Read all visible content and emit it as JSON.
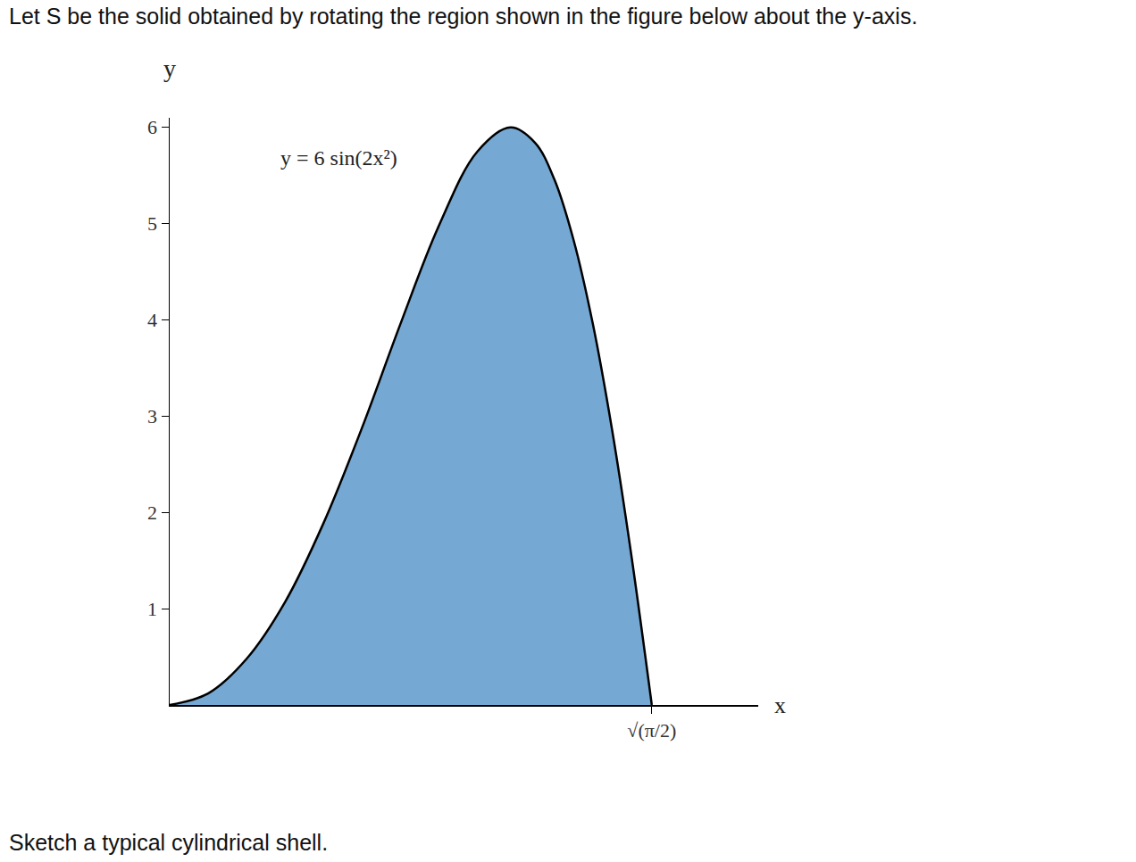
{
  "header": "Let S be the solid obtained by rotating the region shown in the figure below about the y-axis.",
  "footer": "Sketch a typical cylindrical shell.",
  "chart_data": {
    "type": "area",
    "x": [
      0,
      0.1,
      0.2,
      0.3,
      0.4,
      0.5,
      0.6,
      0.7,
      0.8,
      0.886,
      0.95,
      1.0,
      1.05,
      1.1,
      1.15,
      1.2,
      1.2533
    ],
    "values": [
      0,
      0.12,
      0.48,
      1.07,
      1.89,
      2.88,
      3.96,
      4.98,
      5.75,
      6,
      5.84,
      5.46,
      4.83,
      3.96,
      2.86,
      1.56,
      0
    ],
    "color": "#75a8d2",
    "x_label": "x",
    "y_label": "y",
    "annotations": [
      "y = 6 sin(2x²)"
    ],
    "xlim": [
      0,
      1.53
    ],
    "ylim": [
      0,
      6.1
    ],
    "xticks": [
      {
        "value": 1.2533,
        "label": "√(π/2)"
      }
    ],
    "yticks": [
      1,
      2,
      3,
      4,
      5,
      6
    ],
    "grid": false
  }
}
